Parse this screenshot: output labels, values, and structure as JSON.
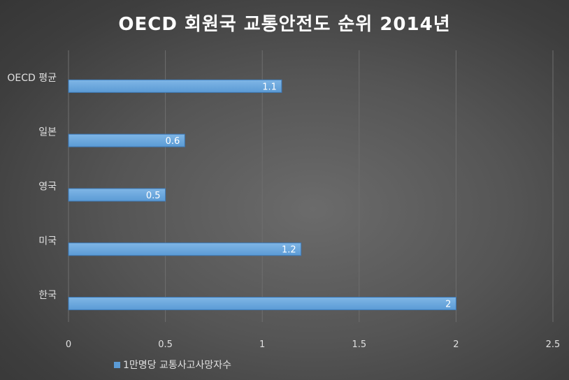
{
  "chart_data": {
    "type": "bar",
    "orientation": "horizontal",
    "title": "OECD 회원국 교통안전도 순위 2014년",
    "categories": [
      "OECD 평균",
      "일본",
      "영국",
      "미국",
      "한국"
    ],
    "series": [
      {
        "name": "1만명당 교통사고사망자수",
        "values": [
          1.1,
          0.6,
          0.5,
          1.2,
          2
        ],
        "value_labels": [
          "1.1",
          "0.6",
          "0.5",
          "1.2",
          "2"
        ],
        "color": "#5b9bd5"
      }
    ],
    "x_ticks": [
      "0",
      "0.5",
      "1",
      "1.5",
      "2",
      "2.5"
    ],
    "xlim": [
      0,
      2.5
    ],
    "grid": true,
    "legend_position": "bottom-left"
  },
  "colors": {
    "bar": "#5b9bd5",
    "bar_highlight": "#7fb6e6",
    "text": "#ffffff",
    "muted_text": "#e0e0e0",
    "grid": "#6e6e6e"
  }
}
